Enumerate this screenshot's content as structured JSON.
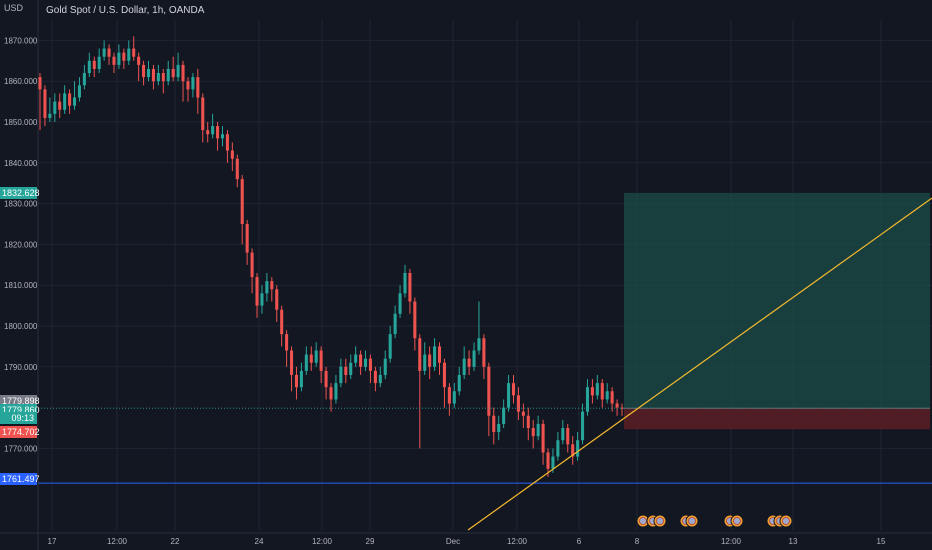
{
  "header": {
    "currency": "USD",
    "title": "Gold Spot / U.S. Dollar, 1h, OANDA"
  },
  "chart_data": {
    "type": "candlestick",
    "y_ticks": [
      "1870.000",
      "1860.000",
      "1850.000",
      "1840.000",
      "1830.000",
      "1820.000",
      "1810.000",
      "1800.000",
      "1790.000",
      "1770.000"
    ],
    "y_tick_values": [
      1870,
      1860,
      1850,
      1840,
      1830,
      1820,
      1810,
      1800,
      1790,
      1770
    ],
    "ylim": [
      1755,
      1880
    ],
    "x_ticks": [
      "17",
      "12:00",
      "22",
      "24",
      "12:00",
      "29",
      "Dec",
      "12:00",
      "6",
      "8",
      "12:00",
      "13",
      "15"
    ],
    "price_levels": {
      "target": {
        "label": "1832.628",
        "value": 1832.628,
        "color": "#26a69a"
      },
      "last_close": {
        "label": "1779.898",
        "value": 1779.898,
        "color": "#787b86"
      },
      "current": {
        "label": "1779.860",
        "value": 1779.86,
        "color": "#26a69a"
      },
      "countdown": "09:13",
      "stop": {
        "label": "1774.702",
        "value": 1774.702,
        "color": "#ef5350"
      },
      "support": {
        "label": "1761.497",
        "value": 1761.497,
        "color": "#2962ff"
      }
    },
    "position_tool": {
      "entry": 1779.86,
      "target": 1832.628,
      "stop": 1774.702
    },
    "trendline": {
      "color": "#f5b82e"
    },
    "colors": {
      "up": "#26a69a",
      "down": "#ef5350",
      "grid": "#1f2433",
      "background": "#131722",
      "axis_text": "#b2b5be"
    },
    "candles": [
      [
        1861,
        1858,
        1862,
        1848
      ],
      [
        1858,
        1851,
        1859,
        1849
      ],
      [
        1851,
        1852,
        1856,
        1850
      ],
      [
        1852,
        1855,
        1857,
        1850
      ],
      [
        1855,
        1853,
        1857,
        1851
      ],
      [
        1853,
        1857,
        1859,
        1852
      ],
      [
        1857,
        1854,
        1858,
        1852
      ],
      [
        1854,
        1856,
        1860,
        1853
      ],
      [
        1856,
        1859,
        1861,
        1855
      ],
      [
        1859,
        1862,
        1864,
        1858
      ],
      [
        1862,
        1865,
        1867,
        1861
      ],
      [
        1865,
        1863,
        1866,
        1861
      ],
      [
        1863,
        1866,
        1868,
        1862
      ],
      [
        1866,
        1868,
        1870,
        1865
      ],
      [
        1868,
        1866,
        1869,
        1864
      ],
      [
        1866,
        1864,
        1867,
        1862
      ],
      [
        1864,
        1867,
        1869,
        1863
      ],
      [
        1867,
        1865,
        1868,
        1863
      ],
      [
        1865,
        1868,
        1870,
        1864
      ],
      [
        1868,
        1866,
        1871,
        1865
      ],
      [
        1866,
        1864,
        1867,
        1860
      ],
      [
        1864,
        1861,
        1865,
        1859
      ],
      [
        1861,
        1863,
        1865,
        1860
      ],
      [
        1863,
        1860,
        1864,
        1858
      ],
      [
        1860,
        1862,
        1864,
        1859
      ],
      [
        1862,
        1860,
        1863,
        1857
      ],
      [
        1860,
        1863,
        1865,
        1859
      ],
      [
        1863,
        1861,
        1866,
        1860
      ],
      [
        1861,
        1864,
        1867,
        1860
      ],
      [
        1864,
        1860,
        1865,
        1855
      ],
      [
        1860,
        1858,
        1861,
        1855
      ],
      [
        1858,
        1861,
        1862,
        1856
      ],
      [
        1861,
        1856,
        1863,
        1852
      ],
      [
        1856,
        1848,
        1857,
        1845
      ],
      [
        1848,
        1847,
        1850,
        1845
      ],
      [
        1847,
        1849,
        1852,
        1846
      ],
      [
        1849,
        1846,
        1850,
        1843
      ],
      [
        1846,
        1847,
        1849,
        1844
      ],
      [
        1847,
        1843,
        1848,
        1840
      ],
      [
        1843,
        1841,
        1845,
        1838
      ],
      [
        1841,
        1836,
        1842,
        1834
      ],
      [
        1836,
        1825,
        1837,
        1820
      ],
      [
        1825,
        1818,
        1826,
        1815
      ],
      [
        1818,
        1812,
        1819,
        1808
      ],
      [
        1812,
        1805,
        1813,
        1802
      ],
      [
        1805,
        1808,
        1810,
        1803
      ],
      [
        1808,
        1811,
        1813,
        1806
      ],
      [
        1811,
        1809,
        1812,
        1806
      ],
      [
        1809,
        1804,
        1810,
        1801
      ],
      [
        1804,
        1798,
        1805,
        1795
      ],
      [
        1798,
        1794,
        1799,
        1790
      ],
      [
        1794,
        1788,
        1795,
        1784
      ],
      [
        1788,
        1785,
        1790,
        1782
      ],
      [
        1785,
        1789,
        1791,
        1784
      ],
      [
        1789,
        1793,
        1795,
        1788
      ],
      [
        1793,
        1791,
        1795,
        1789
      ],
      [
        1791,
        1794,
        1796,
        1790
      ],
      [
        1794,
        1789,
        1795,
        1786
      ],
      [
        1789,
        1785,
        1790,
        1782
      ],
      [
        1785,
        1782,
        1786,
        1779
      ],
      [
        1782,
        1786,
        1788,
        1781
      ],
      [
        1786,
        1790,
        1792,
        1785
      ],
      [
        1790,
        1788,
        1792,
        1786
      ],
      [
        1788,
        1791,
        1793,
        1787
      ],
      [
        1791,
        1793,
        1795,
        1790
      ],
      [
        1793,
        1790,
        1794,
        1788
      ],
      [
        1790,
        1792,
        1794,
        1789
      ],
      [
        1792,
        1789,
        1793,
        1786
      ],
      [
        1789,
        1786,
        1790,
        1784
      ],
      [
        1786,
        1788,
        1790,
        1785
      ],
      [
        1788,
        1792,
        1794,
        1787
      ],
      [
        1792,
        1798,
        1800,
        1791
      ],
      [
        1798,
        1803,
        1805,
        1797
      ],
      [
        1803,
        1808,
        1810,
        1802
      ],
      [
        1808,
        1813,
        1815,
        1807
      ],
      [
        1813,
        1806,
        1814,
        1803
      ],
      [
        1806,
        1797,
        1807,
        1794
      ],
      [
        1797,
        1789,
        1798,
        1770
      ],
      [
        1789,
        1793,
        1796,
        1788
      ],
      [
        1793,
        1790,
        1795,
        1787
      ],
      [
        1790,
        1795,
        1797,
        1789
      ],
      [
        1795,
        1791,
        1796,
        1788
      ],
      [
        1791,
        1785,
        1792,
        1780
      ],
      [
        1785,
        1781,
        1786,
        1778
      ],
      [
        1781,
        1784,
        1786,
        1780
      ],
      [
        1784,
        1788,
        1790,
        1783
      ],
      [
        1788,
        1792,
        1795,
        1787
      ],
      [
        1792,
        1790,
        1794,
        1788
      ],
      [
        1790,
        1794,
        1796,
        1789
      ],
      [
        1794,
        1797,
        1806,
        1793
      ],
      [
        1797,
        1790,
        1798,
        1787
      ],
      [
        1790,
        1778,
        1791,
        1773
      ],
      [
        1778,
        1774,
        1780,
        1771
      ],
      [
        1774,
        1776,
        1778,
        1772
      ],
      [
        1776,
        1780,
        1782,
        1775
      ],
      [
        1780,
        1786,
        1788,
        1779
      ],
      [
        1786,
        1783,
        1788,
        1781
      ],
      [
        1783,
        1779,
        1785,
        1777
      ],
      [
        1779,
        1778,
        1781,
        1775
      ],
      [
        1778,
        1775,
        1780,
        1772
      ],
      [
        1775,
        1773,
        1777,
        1770
      ],
      [
        1773,
        1776,
        1778,
        1772
      ],
      [
        1776,
        1769,
        1777,
        1766
      ],
      [
        1769,
        1765,
        1770,
        1763
      ],
      [
        1765,
        1768,
        1770,
        1764
      ],
      [
        1768,
        1772,
        1774,
        1767
      ],
      [
        1772,
        1775,
        1777,
        1771
      ],
      [
        1775,
        1771,
        1776,
        1769
      ],
      [
        1771,
        1768,
        1773,
        1766
      ],
      [
        1768,
        1772,
        1774,
        1767
      ],
      [
        1772,
        1779,
        1781,
        1771
      ],
      [
        1779,
        1785,
        1787,
        1778
      ],
      [
        1785,
        1783,
        1787,
        1781
      ],
      [
        1783,
        1786,
        1788,
        1782
      ],
      [
        1786,
        1782,
        1787,
        1780
      ],
      [
        1782,
        1784,
        1786,
        1781
      ],
      [
        1784,
        1781,
        1785,
        1779
      ],
      [
        1781,
        1780,
        1782,
        1778
      ],
      [
        1780,
        1779.9,
        1781,
        1778
      ]
    ]
  }
}
